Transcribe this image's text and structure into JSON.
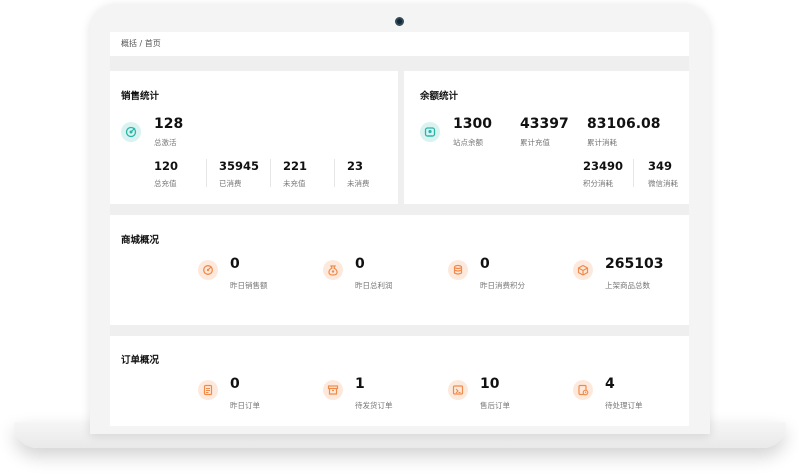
{
  "breadcrumb": "概括 / 首页",
  "sales": {
    "title": "销售统计",
    "main": {
      "value": "128",
      "label": "总激活"
    },
    "stats": [
      {
        "value": "120",
        "label": "总充值"
      },
      {
        "value": "35945",
        "label": "已消费"
      },
      {
        "value": "221",
        "label": "未充值"
      },
      {
        "value": "23",
        "label": "未消费"
      }
    ]
  },
  "balance": {
    "title": "余额统计",
    "top": [
      {
        "value": "1300",
        "label": "站点余额"
      },
      {
        "value": "43397",
        "label": "累计充值"
      },
      {
        "value": "83106.08",
        "label": "累计消耗"
      }
    ],
    "bottom": [
      {
        "value": "23490",
        "label": "积分消耗"
      },
      {
        "value": "349",
        "label": "微信消耗"
      }
    ]
  },
  "mall": {
    "title": "商城概况",
    "items": [
      {
        "value": "0",
        "label": "昨日销售额",
        "icon": "sales-icon"
      },
      {
        "value": "0",
        "label": "昨日总利润",
        "icon": "money-bag-icon"
      },
      {
        "value": "0",
        "label": "昨日消费积分",
        "icon": "coins-icon"
      },
      {
        "value": "265103",
        "label": "上架商品总数",
        "icon": "box-icon"
      }
    ]
  },
  "orders": {
    "title": "订单概况",
    "items": [
      {
        "value": "0",
        "label": "昨日订单",
        "icon": "order-list-icon"
      },
      {
        "value": "1",
        "label": "待发货订单",
        "icon": "shipping-box-icon"
      },
      {
        "value": "10",
        "label": "售后订单",
        "icon": "after-sales-icon"
      },
      {
        "value": "4",
        "label": "待处理订单",
        "icon": "pending-order-icon"
      }
    ]
  },
  "colors": {
    "teal": "#2bb5a8",
    "orange": "#f08a4b"
  }
}
